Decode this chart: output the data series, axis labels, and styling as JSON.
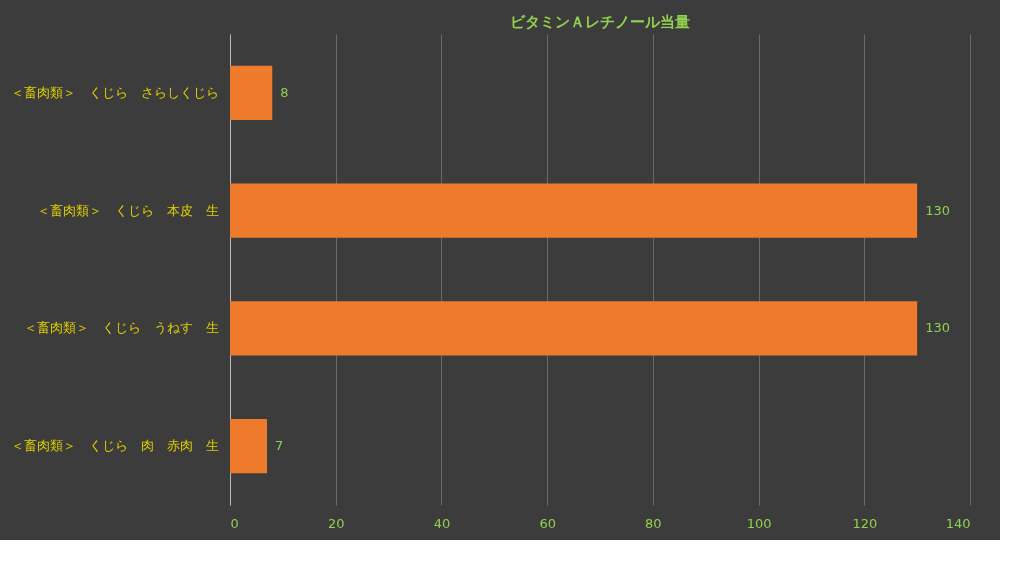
{
  "chart_data": {
    "type": "bar",
    "orientation": "horizontal",
    "title": "ビタミンＡレチノール当量",
    "categories": [
      "＜畜肉類＞　くじら　さらしくじら",
      "＜畜肉類＞　くじら　本皮　生",
      "＜畜肉類＞　くじら　うねす　生",
      "＜畜肉類＞　くじら　肉　赤肉　生"
    ],
    "values": [
      8,
      130,
      130,
      7
    ],
    "color": "#ee7b2c",
    "xlim": [
      0,
      140
    ],
    "xticks": [
      0,
      20,
      40,
      60,
      80,
      100,
      120,
      140
    ],
    "grid": "x",
    "data_labels": true
  }
}
